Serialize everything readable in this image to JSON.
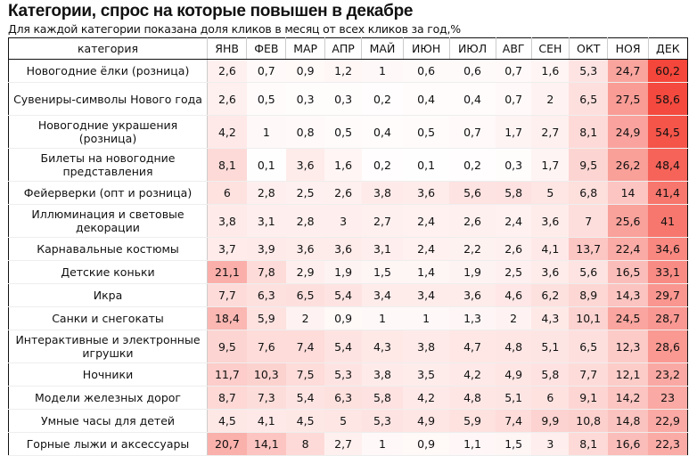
{
  "chart_data": {
    "type": "heatmap",
    "title": "Категории, спрос на которые повышен в декабре",
    "subtitle": "Для каждой категории показана доля кликов в месяц от всех кликов за год,%",
    "header": "категория",
    "columns": [
      "ЯНВ",
      "ФЕВ",
      "МАР",
      "АПР",
      "МАЙ",
      "ИЮН",
      "ИЮЛ",
      "АВГ",
      "СЕН",
      "ОКТ",
      "НОЯ",
      "ДЕК"
    ],
    "color_low": "#ffffff",
    "color_high": "#f4463a",
    "rows": [
      {
        "label": "Новогодние ёлки (розница)",
        "values": [
          "2,6",
          "0,7",
          "0,9",
          "1,2",
          "1",
          "0,6",
          "0,6",
          "0,7",
          "1,6",
          "5,3",
          "24,7",
          "60,2"
        ]
      },
      {
        "label": "Сувениры-символы Нового года",
        "values": [
          "2,6",
          "0,5",
          "0,3",
          "0,3",
          "0,2",
          "0,4",
          "0,4",
          "0,7",
          "2",
          "6,5",
          "27,5",
          "58,6"
        ]
      },
      {
        "label": "Новогодние украшения (розница)",
        "values": [
          "4,2",
          "1",
          "0,8",
          "0,5",
          "0,4",
          "0,5",
          "0,7",
          "1,7",
          "2,7",
          "8,1",
          "24,9",
          "54,5"
        ]
      },
      {
        "label": "Билеты на новогодние представления",
        "values": [
          "8,1",
          "0,1",
          "3,6",
          "1,6",
          "0,2",
          "0,1",
          "0,2",
          "0,3",
          "1,7",
          "9,5",
          "26,2",
          "48,4"
        ]
      },
      {
        "label": "Фейерверки (опт и розница)",
        "values": [
          "6",
          "2,8",
          "2,5",
          "2,6",
          "3,8",
          "3,6",
          "5,6",
          "5,8",
          "5",
          "6,8",
          "14",
          "41,4"
        ]
      },
      {
        "label": "Иллюминация и световые декорации",
        "values": [
          "3,8",
          "3,1",
          "2,8",
          "3",
          "2,7",
          "2,4",
          "2,6",
          "2,4",
          "3,6",
          "7",
          "25,6",
          "41"
        ]
      },
      {
        "label": "Карнавальные костюмы",
        "values": [
          "3,7",
          "3,9",
          "3,6",
          "3,6",
          "3,1",
          "2,4",
          "2,2",
          "2,6",
          "4,1",
          "13,7",
          "22,4",
          "34,6"
        ]
      },
      {
        "label": "Детские коньки",
        "values": [
          "21,1",
          "7,8",
          "2,9",
          "1,9",
          "1,5",
          "1,4",
          "1,9",
          "2,5",
          "3,6",
          "5,6",
          "16,5",
          "33,1"
        ]
      },
      {
        "label": "Икра",
        "values": [
          "7,7",
          "6,3",
          "6,5",
          "5,4",
          "3,4",
          "3,4",
          "3,6",
          "4,6",
          "6,2",
          "8,9",
          "14,3",
          "29,7"
        ]
      },
      {
        "label": "Санки и снегокаты",
        "values": [
          "18,4",
          "5,9",
          "2",
          "0,9",
          "1",
          "1",
          "1,3",
          "2",
          "4,3",
          "10,1",
          "24,5",
          "28,7"
        ]
      },
      {
        "label": "Интерактивные и электронные игрушки",
        "values": [
          "9,5",
          "7,6",
          "7,4",
          "5,4",
          "4,3",
          "3,8",
          "4,7",
          "4,8",
          "5,1",
          "6,5",
          "12,3",
          "28,6"
        ]
      },
      {
        "label": "Ночники",
        "values": [
          "11,7",
          "10,3",
          "7,5",
          "5,3",
          "3,8",
          "3,5",
          "4,2",
          "4,9",
          "5,8",
          "7,7",
          "12,1",
          "23,2"
        ]
      },
      {
        "label": "Модели железных дорог",
        "values": [
          "8,7",
          "7,3",
          "5,4",
          "6,3",
          "5,8",
          "4,2",
          "4,8",
          "5,1",
          "6",
          "9,1",
          "14,2",
          "23"
        ]
      },
      {
        "label": "Умные часы для детей",
        "values": [
          "4,5",
          "4,1",
          "4,5",
          "5",
          "5,3",
          "4,9",
          "5,9",
          "7,4",
          "9,9",
          "10,8",
          "14,8",
          "22,9"
        ]
      },
      {
        "label": "Горные лыжи и аксессуары",
        "values": [
          "20,7",
          "14,1",
          "8",
          "2,7",
          "1",
          "0,9",
          "1,1",
          "1,5",
          "3",
          "8,1",
          "16,6",
          "22,3"
        ]
      }
    ]
  }
}
